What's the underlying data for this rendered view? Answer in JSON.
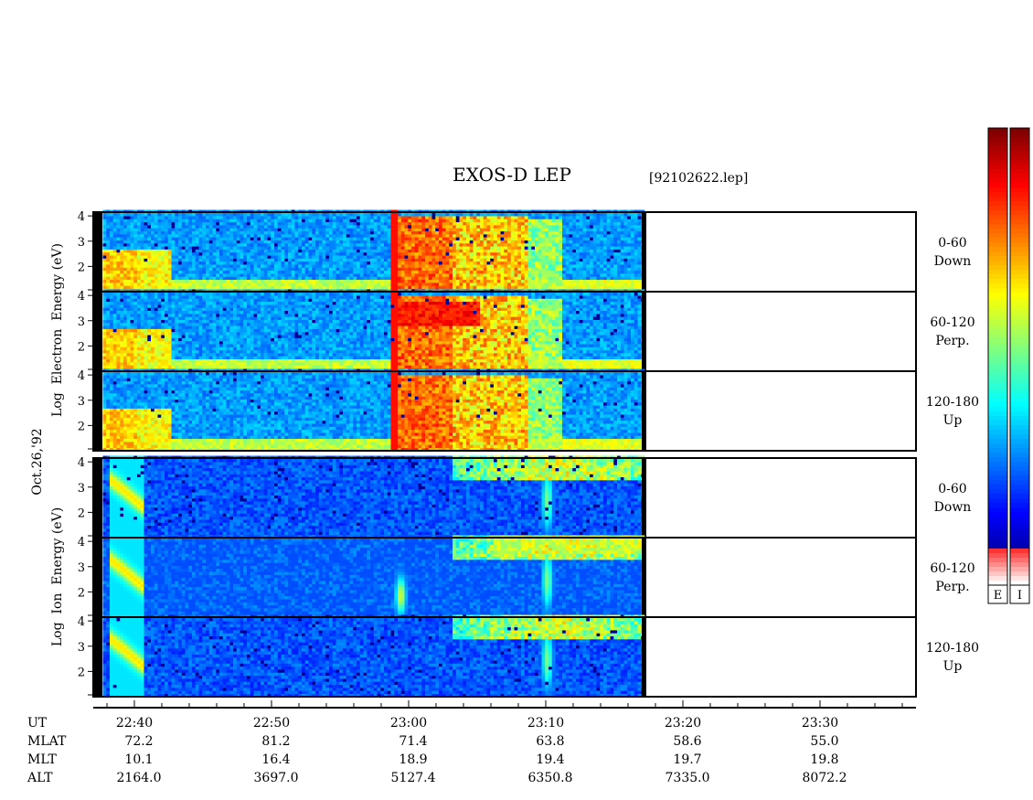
{
  "chart_data": {
    "type": "heatmap",
    "title": "EXOS-D LEP",
    "file_label": "[92102622.lep]",
    "date_label": "Oct.26,'92",
    "groups": [
      {
        "name": "Electron",
        "ylabel": "Log  Electron  Energy (eV)",
        "panels": [
          {
            "label_top": "0-60",
            "label_bottom": "Down"
          },
          {
            "label_top": "60-120",
            "label_bottom": "Perp."
          },
          {
            "label_top": "120-180",
            "label_bottom": "Up"
          }
        ]
      },
      {
        "name": "Ion",
        "ylabel": "Log  Ion  Energy (eV)",
        "panels": [
          {
            "label_top": "0-60",
            "label_bottom": "Down"
          },
          {
            "label_top": "60-120",
            "label_bottom": "Perp."
          },
          {
            "label_top": "120-180",
            "label_bottom": "Up"
          }
        ]
      }
    ],
    "y_ticks": [
      "4",
      "3",
      "2"
    ],
    "ylim": [
      1,
      4
    ],
    "x_range_minutes": [
      -3,
      57
    ],
    "data_end_minute": 37,
    "x_ticks": [
      "22:40",
      "22:50",
      "23:00",
      "23:10",
      "23:20",
      "23:30"
    ],
    "orbit_rows": [
      {
        "name": "UT",
        "values": [
          "22:40",
          "22:50",
          "23:00",
          "23:10",
          "23:20",
          "23:30"
        ]
      },
      {
        "name": "MLAT",
        "values": [
          "72.2",
          "81.2",
          "71.4",
          "63.8",
          "58.6",
          "55.0"
        ]
      },
      {
        "name": "MLT",
        "values": [
          "10.1",
          "16.4",
          "18.9",
          "19.4",
          "19.7",
          "19.8"
        ]
      },
      {
        "name": "ALT",
        "values": [
          "2164.0",
          "3697.0",
          "5127.4",
          "6350.8",
          "7335.0",
          "8072.2"
        ]
      }
    ],
    "colorbar_labels": [
      "E",
      "I"
    ]
  }
}
